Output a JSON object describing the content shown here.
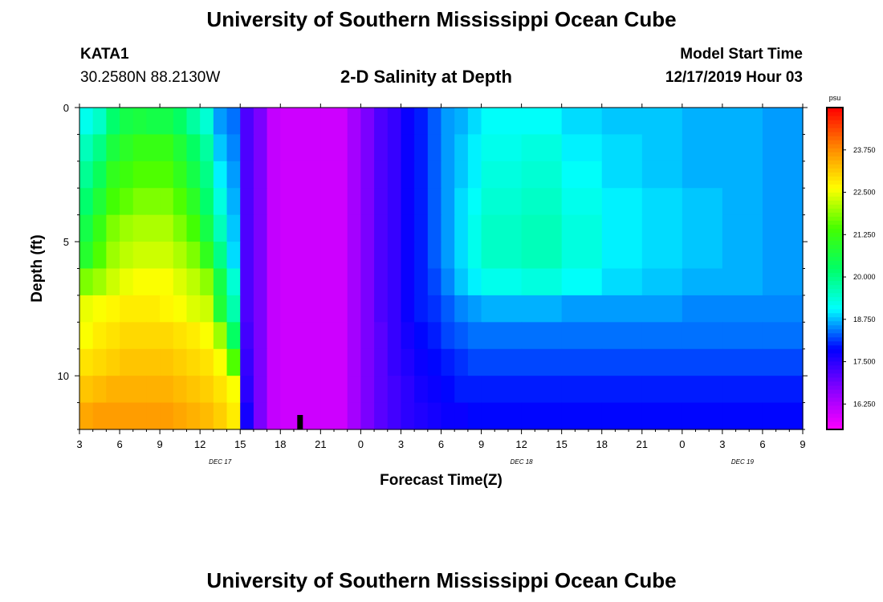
{
  "header": {
    "title": "University of Southern Mississippi Ocean Cube",
    "station": "KATA1",
    "coordinates": "30.2580N 88.2130W",
    "subtitle": "2-D Salinity at Depth",
    "model_start_label": "Model Start Time",
    "model_start_value": "12/17/2019 Hour 03"
  },
  "footer": {
    "title": "University of Southern Mississippi Ocean Cube"
  },
  "chart_data": {
    "type": "heatmap",
    "title": "2-D Salinity at Depth",
    "xlabel": "Forecast Time(Z)",
    "ylabel": "Depth (ft)",
    "x_ticks": [
      "3",
      "6",
      "9",
      "12",
      "15",
      "18",
      "21",
      "0",
      "3",
      "6",
      "9",
      "12",
      "15",
      "18",
      "21",
      "0",
      "3",
      "6",
      "9"
    ],
    "x_tick_hours": [
      0,
      3,
      6,
      9,
      12,
      15,
      18,
      21,
      24,
      27,
      30,
      33,
      36,
      39,
      42,
      45,
      48,
      51,
      54
    ],
    "x_range_hours": [
      0,
      54
    ],
    "day_labels": [
      {
        "text": "DEC 17",
        "hour": 10.5
      },
      {
        "text": "DEC 18",
        "hour": 33
      },
      {
        "text": "DEC 19",
        "hour": 49.5
      }
    ],
    "y_ticks": [
      "0",
      "5",
      "10"
    ],
    "y_tick_values": [
      0,
      5,
      10
    ],
    "ylim": [
      0,
      12
    ],
    "colorbar": {
      "unit": "psu",
      "labels": [
        "23.750",
        "22.500",
        "21.250",
        "20.000",
        "18.750",
        "17.500",
        "16.250"
      ],
      "values": [
        23.75,
        22.5,
        21.25,
        20.0,
        18.75,
        17.5,
        16.25
      ],
      "min": 15.5,
      "max": 25.0,
      "colors": [
        "#ff00ff",
        "#8800ff",
        "#0000ff",
        "#00ffff",
        "#00ff66",
        "#44ff00",
        "#ffff00",
        "#ff8800",
        "#ff0000"
      ]
    },
    "x_columns_hours": [
      0,
      1,
      2,
      3,
      4,
      5,
      6,
      7,
      8,
      9,
      10,
      11,
      12,
      13,
      14,
      15,
      16,
      17,
      18,
      19,
      20,
      21,
      22,
      23,
      24,
      25,
      26,
      27,
      28,
      29,
      30,
      33,
      36,
      39,
      42,
      45,
      48,
      51,
      54
    ],
    "rows": [
      {
        "depth": 0.5,
        "values": [
          19.2,
          19.5,
          20.2,
          20.6,
          20.7,
          20.6,
          20.6,
          20.3,
          19.8,
          19.4,
          18.6,
          18.4,
          17.2,
          16.8,
          16.1,
          16.0,
          16.0,
          16.0,
          16.0,
          16.0,
          16.4,
          16.8,
          17.2,
          17.4,
          17.8,
          18.0,
          18.3,
          18.6,
          18.7,
          18.9,
          19.1,
          19.1,
          18.9,
          18.8,
          18.8,
          18.7,
          18.7,
          18.6,
          18.6
        ]
      },
      {
        "depth": 1.5,
        "values": [
          19.6,
          20.0,
          20.7,
          21.0,
          21.2,
          21.2,
          21.2,
          20.8,
          20.3,
          19.8,
          18.8,
          18.5,
          17.2,
          16.8,
          16.1,
          16.0,
          16.0,
          16.0,
          16.0,
          16.0,
          16.4,
          16.8,
          17.2,
          17.4,
          17.8,
          18.0,
          18.3,
          18.6,
          18.8,
          19.0,
          19.2,
          19.3,
          19.0,
          18.9,
          18.8,
          18.7,
          18.7,
          18.6,
          18.6
        ]
      },
      {
        "depth": 2.5,
        "values": [
          19.9,
          20.4,
          21.1,
          21.3,
          21.5,
          21.5,
          21.5,
          21.1,
          20.6,
          20.0,
          19.0,
          18.6,
          17.2,
          16.8,
          16.1,
          16.0,
          16.0,
          16.0,
          16.0,
          16.0,
          16.4,
          16.8,
          17.2,
          17.4,
          17.8,
          18.0,
          18.3,
          18.6,
          18.8,
          19.0,
          19.3,
          19.4,
          19.1,
          18.9,
          18.8,
          18.7,
          18.7,
          18.6,
          18.6
        ]
      },
      {
        "depth": 3.5,
        "values": [
          20.2,
          20.8,
          21.4,
          21.6,
          21.8,
          21.8,
          21.8,
          21.5,
          21.0,
          20.2,
          19.3,
          18.7,
          17.2,
          16.8,
          16.1,
          16.0,
          16.0,
          16.0,
          16.0,
          16.0,
          16.4,
          16.8,
          17.2,
          17.4,
          17.8,
          18.0,
          18.3,
          18.6,
          18.9,
          19.1,
          19.4,
          19.5,
          19.2,
          19.0,
          18.9,
          18.8,
          18.7,
          18.6,
          18.6
        ]
      },
      {
        "depth": 4.5,
        "values": [
          20.6,
          21.2,
          21.8,
          22.0,
          22.1,
          22.1,
          22.1,
          21.8,
          21.4,
          20.6,
          19.6,
          18.8,
          17.2,
          16.8,
          16.1,
          16.0,
          16.0,
          16.0,
          16.0,
          16.0,
          16.4,
          16.8,
          17.2,
          17.4,
          17.8,
          18.0,
          18.3,
          18.6,
          18.9,
          19.2,
          19.5,
          19.6,
          19.3,
          19.0,
          18.9,
          18.8,
          18.7,
          18.6,
          18.6
        ]
      },
      {
        "depth": 5.5,
        "values": [
          20.9,
          21.5,
          22.0,
          22.2,
          22.3,
          22.3,
          22.3,
          22.1,
          21.8,
          21.1,
          20.0,
          18.9,
          17.2,
          16.8,
          16.1,
          16.0,
          16.0,
          16.0,
          16.0,
          16.0,
          16.4,
          16.8,
          17.2,
          17.4,
          17.8,
          18.0,
          18.3,
          18.6,
          18.9,
          19.2,
          19.5,
          19.6,
          19.3,
          19.0,
          18.9,
          18.8,
          18.7,
          18.6,
          18.6
        ]
      },
      {
        "depth": 6.5,
        "values": [
          21.8,
          22.0,
          22.3,
          22.5,
          22.6,
          22.6,
          22.6,
          22.4,
          22.2,
          21.9,
          20.6,
          19.4,
          17.2,
          16.8,
          16.1,
          16.0,
          16.0,
          16.0,
          16.0,
          16.0,
          16.4,
          16.8,
          17.2,
          17.4,
          17.8,
          18.0,
          18.2,
          18.5,
          18.8,
          19.0,
          19.2,
          19.3,
          19.1,
          18.9,
          18.8,
          18.7,
          18.7,
          18.6,
          18.6
        ]
      },
      {
        "depth": 7.5,
        "values": [
          22.5,
          22.6,
          22.7,
          22.8,
          22.8,
          22.8,
          22.7,
          22.6,
          22.4,
          22.3,
          20.8,
          19.7,
          17.2,
          16.8,
          16.1,
          16.0,
          16.0,
          16.0,
          16.0,
          16.0,
          16.4,
          16.8,
          17.2,
          17.4,
          17.8,
          18.0,
          18.1,
          18.3,
          18.5,
          18.6,
          18.7,
          18.7,
          18.6,
          18.6,
          18.6,
          18.5,
          18.5,
          18.5,
          18.5
        ]
      },
      {
        "depth": 8.5,
        "values": [
          22.6,
          22.8,
          22.9,
          23.0,
          23.0,
          23.0,
          23.0,
          22.9,
          22.8,
          22.6,
          22.0,
          20.3,
          17.3,
          16.8,
          16.1,
          16.0,
          16.0,
          16.0,
          16.0,
          16.0,
          16.4,
          16.8,
          17.1,
          17.4,
          17.7,
          17.9,
          18.0,
          18.2,
          18.3,
          18.4,
          18.4,
          18.4,
          18.4,
          18.4,
          18.4,
          18.4,
          18.4,
          18.4,
          18.4
        ]
      },
      {
        "depth": 9.5,
        "values": [
          22.9,
          23.0,
          23.1,
          23.2,
          23.2,
          23.2,
          23.2,
          23.1,
          23.0,
          22.9,
          22.6,
          21.5,
          17.4,
          16.8,
          16.1,
          16.0,
          16.0,
          16.0,
          16.0,
          16.0,
          16.4,
          16.8,
          17.1,
          17.4,
          17.6,
          17.8,
          17.9,
          18.0,
          18.1,
          18.2,
          18.2,
          18.2,
          18.2,
          18.2,
          18.2,
          18.2,
          18.2,
          18.2,
          18.2
        ]
      },
      {
        "depth": 10.5,
        "values": [
          23.2,
          23.3,
          23.4,
          23.4,
          23.4,
          23.4,
          23.4,
          23.3,
          23.2,
          23.1,
          22.9,
          22.6,
          17.5,
          16.8,
          16.1,
          16.0,
          16.0,
          16.0,
          16.0,
          16.0,
          16.4,
          16.8,
          17.1,
          17.3,
          17.5,
          17.7,
          17.8,
          17.9,
          18.0,
          18.0,
          18.0,
          18.0,
          18.0,
          18.0,
          18.0,
          18.0,
          18.0,
          18.0,
          18.0
        ]
      },
      {
        "depth": 11.5,
        "values": [
          23.5,
          23.6,
          23.6,
          23.6,
          23.6,
          23.6,
          23.6,
          23.5,
          23.4,
          23.3,
          23.1,
          22.8,
          17.7,
          16.8,
          16.1,
          16.0,
          16.0,
          16.0,
          16.0,
          16.0,
          16.4,
          16.8,
          17.1,
          17.3,
          17.5,
          17.6,
          17.7,
          17.8,
          17.8,
          17.9,
          17.9,
          17.9,
          17.9,
          17.9,
          17.9,
          17.9,
          17.9,
          17.9,
          17.9
        ]
      }
    ],
    "marker_hour": 16.5
  }
}
